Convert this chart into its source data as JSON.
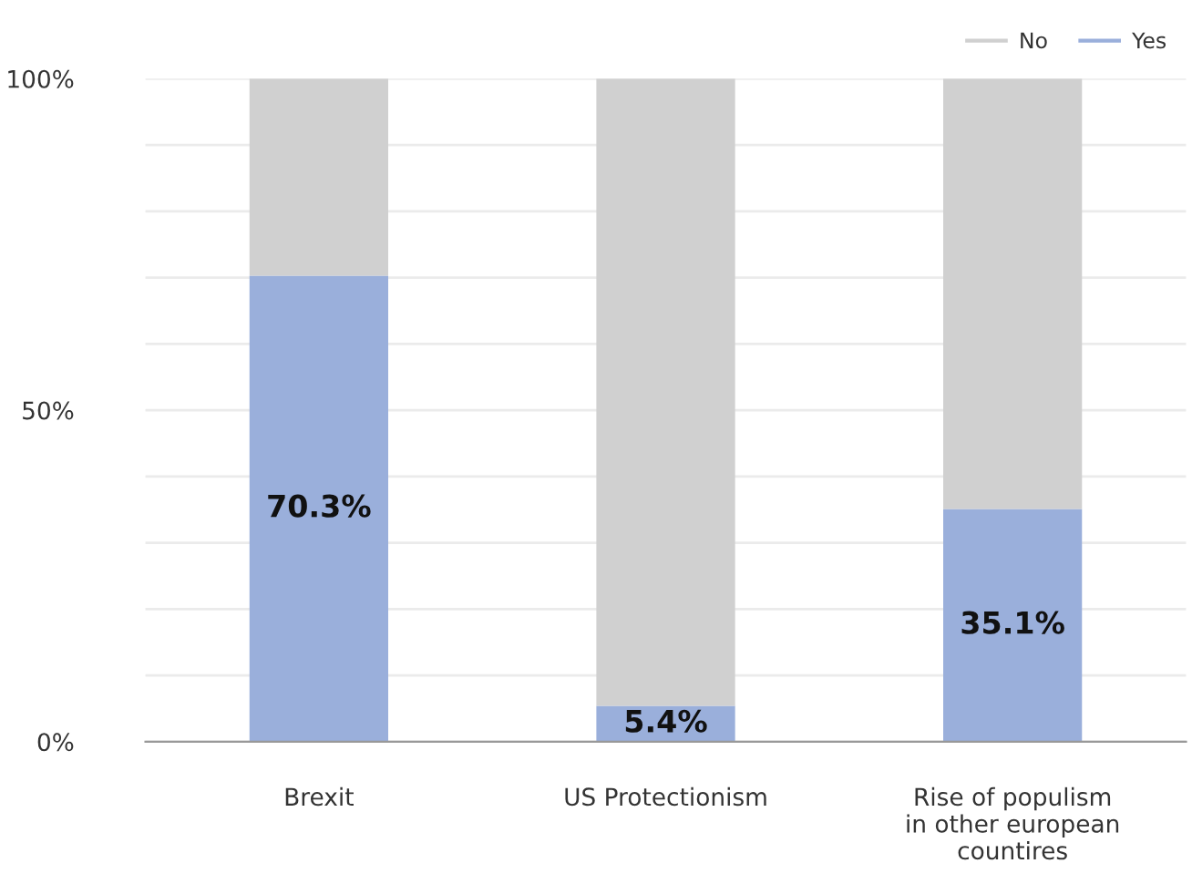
{
  "chart_data": {
    "type": "bar",
    "stacked": true,
    "categories": [
      "Brexit",
      "US Protectionism",
      "Rise of populism\nin other european\ncountires"
    ],
    "series": [
      {
        "name": "Yes",
        "color": "#9aafdb",
        "values": [
          70.3,
          5.4,
          35.1
        ],
        "value_labels": [
          "70.3%",
          "5.4%",
          "35.1%"
        ]
      },
      {
        "name": "No",
        "color": "#d0d0d0",
        "values": [
          29.7,
          94.6,
          64.9
        ]
      }
    ],
    "ylim": [
      0,
      100
    ],
    "yticks": [
      {
        "value": 0,
        "label": "0%"
      },
      {
        "value": 10,
        "label": null
      },
      {
        "value": 20,
        "label": null
      },
      {
        "value": 30,
        "label": null
      },
      {
        "value": 40,
        "label": null
      },
      {
        "value": 50,
        "label": "50%"
      },
      {
        "value": 60,
        "label": null
      },
      {
        "value": 70,
        "label": null
      },
      {
        "value": 80,
        "label": null
      },
      {
        "value": 90,
        "label": null
      },
      {
        "value": 100,
        "label": "100%"
      }
    ],
    "grid": "y",
    "legend": "top right"
  }
}
